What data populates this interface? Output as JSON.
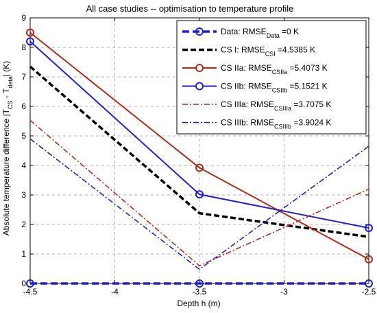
{
  "chart_data": {
    "type": "line",
    "title": "All case studies -- optimisation to temperature profile",
    "xlabel": "Depth h (m)",
    "ylabel_parts": [
      "Absolute temperature difference |T",
      "CS",
      " - T",
      "data",
      "| (K)"
    ],
    "xlim": [
      -4.5,
      -2.5
    ],
    "ylim": [
      0,
      9
    ],
    "x_ticks": [
      "-4.5",
      "-4",
      "-3.5",
      "-3",
      "-2.5"
    ],
    "y_ticks": [
      "0",
      "1",
      "2",
      "3",
      "4",
      "5",
      "6",
      "7",
      "8",
      "9"
    ],
    "grid": true,
    "legend_position": "top-right",
    "x": [
      -4.5,
      -3.5,
      -2.5
    ],
    "series": [
      {
        "key": "data",
        "values": [
          0,
          0,
          0
        ],
        "color": "#1f1fd6",
        "dash": "10,5",
        "width": 3.5,
        "marker": "circle",
        "legend": {
          "pre": "Data: RMSE",
          "sub": "Data",
          "post": " =0 K"
        }
      },
      {
        "key": "cs1",
        "values": [
          7.35,
          2.38,
          1.58
        ],
        "color": "#000000",
        "dash": "8,4",
        "width": 3.5,
        "marker": null,
        "legend": {
          "pre": "CS I: RMSE",
          "sub": "CSI",
          "post": " =4.5385 K"
        }
      },
      {
        "key": "cs2a",
        "values": [
          8.5,
          3.92,
          0.82
        ],
        "color": "#b22a1a",
        "dash": "",
        "width": 2,
        "marker": "circle",
        "legend": {
          "pre": "CS IIa: RMSE",
          "sub": "CSIIa",
          "post": " =5.4073 K"
        }
      },
      {
        "key": "cs2b",
        "values": [
          8.2,
          3.02,
          1.88
        ],
        "color": "#1f1fd6",
        "dash": "",
        "width": 2,
        "marker": "circle",
        "legend": {
          "pre": "CS IIb: RMSE",
          "sub": "CSIIb",
          "post": " =5.1521 K"
        }
      },
      {
        "key": "cs3a",
        "values": [
          5.53,
          0.6,
          3.2
        ],
        "color": "#b22a1a",
        "dash": "8,3,2,3",
        "width": 1.6,
        "marker": null,
        "legend": {
          "pre": "CS IIIa: RMSE",
          "sub": "CSIIIa",
          "post": " =3.7075 K"
        }
      },
      {
        "key": "cs3b",
        "values": [
          4.9,
          0.48,
          4.65
        ],
        "color": "#1f1fd6",
        "dash": "8,3,2,3",
        "width": 1.6,
        "marker": null,
        "legend": {
          "pre": "CS IIIb: RMSE",
          "sub": "CSIIIb",
          "post": " =3.9024 K"
        }
      }
    ]
  }
}
